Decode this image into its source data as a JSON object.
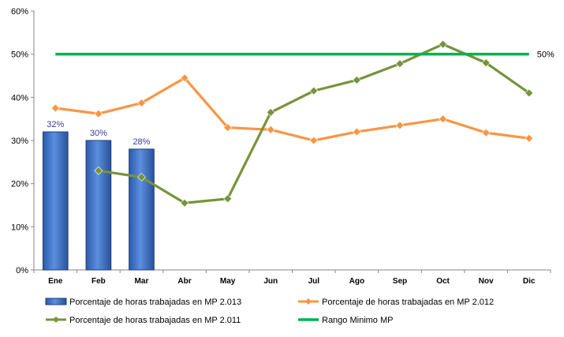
{
  "chart_data": {
    "type": "bar+line",
    "categories": [
      "Ene",
      "Feb",
      "Mar",
      "Abr",
      "May",
      "Jun",
      "Jul",
      "Ago",
      "Sep",
      "Oct",
      "Nov",
      "Dic"
    ],
    "y_ticks": [
      "0%",
      "10%",
      "20%",
      "30%",
      "40%",
      "50%",
      "60%"
    ],
    "ylim": [
      0,
      60
    ],
    "grid": false,
    "legend_position": "bottom",
    "series": [
      {
        "name": "Porcentaje de horas trabajadas en MP 2.013",
        "kind": "bar",
        "color": "#3a6fc4",
        "values": [
          32,
          30,
          28,
          null,
          null,
          null,
          null,
          null,
          null,
          null,
          null,
          null
        ],
        "labels": [
          "32%",
          "30%",
          "28%"
        ]
      },
      {
        "name": "Porcentaje de horas trabajadas en MP 2.012",
        "kind": "line",
        "color": "#f79646",
        "values": [
          37.5,
          36.2,
          38.7,
          44.5,
          33,
          32.5,
          30,
          32,
          33.5,
          35,
          31.8,
          30.5
        ]
      },
      {
        "name": "Porcentaje de horas trabajadas en MP 2.011",
        "kind": "line",
        "color": "#77933c",
        "values": [
          null,
          23,
          21.5,
          15.5,
          16.5,
          36.5,
          41.5,
          44,
          47.8,
          52.3,
          48,
          41
        ]
      },
      {
        "name": "Rango Minimo MP",
        "kind": "reference-line",
        "color": "#00b050",
        "value": 50,
        "label": "50%"
      }
    ]
  }
}
